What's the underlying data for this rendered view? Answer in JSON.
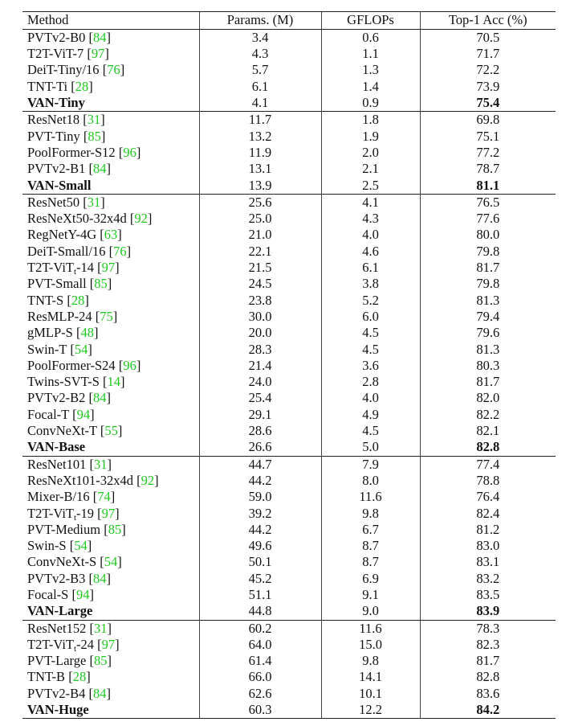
{
  "bracket": [
    "[",
    "]"
  ],
  "table": {
    "header": [
      "Method",
      "Params. (M)",
      "GFLOPs",
      "Top-1 Acc (%)"
    ],
    "groups": [
      {
        "rows": [
          {
            "method": "PVTv2-B0",
            "ref": "84",
            "params": "3.4",
            "gflops": "0.6",
            "acc": "70.5"
          },
          {
            "method": "T2T-ViT-7",
            "ref": "97",
            "params": "4.3",
            "gflops": "1.1",
            "acc": "71.7"
          },
          {
            "method": "DeiT-Tiny/16",
            "ref": "76",
            "params": "5.7",
            "gflops": "1.3",
            "acc": "72.2"
          },
          {
            "method": "TNT-Ti",
            "ref": "28",
            "params": "6.1",
            "gflops": "1.4",
            "acc": "73.9"
          },
          {
            "method": "VAN-Tiny",
            "bold": true,
            "params": "4.1",
            "gflops": "0.9",
            "acc": "75.4"
          }
        ]
      },
      {
        "rows": [
          {
            "method": "ResNet18",
            "ref": "31",
            "params": "11.7",
            "gflops": "1.8",
            "acc": "69.8"
          },
          {
            "method": "PVT-Tiny",
            "ref": "85",
            "params": "13.2",
            "gflops": "1.9",
            "acc": "75.1"
          },
          {
            "method": "PoolFormer-S12",
            "ref": "96",
            "params": "11.9",
            "gflops": "2.0",
            "acc": "77.2"
          },
          {
            "method": "PVTv2-B1",
            "ref": "84",
            "params": "13.1",
            "gflops": "2.1",
            "acc": "78.7"
          },
          {
            "method": "VAN-Small",
            "bold": true,
            "params": "13.9",
            "gflops": "2.5",
            "acc": "81.1"
          }
        ]
      },
      {
        "rows": [
          {
            "method": "ResNet50",
            "ref": "31",
            "params": "25.6",
            "gflops": "4.1",
            "acc": "76.5"
          },
          {
            "method": "ResNeXt50-32x4d",
            "ref": "92",
            "params": "25.0",
            "gflops": "4.3",
            "acc": "77.6"
          },
          {
            "method": "RegNetY-4G",
            "ref": "63",
            "params": "21.0",
            "gflops": "4.0",
            "acc": "80.0"
          },
          {
            "method": "DeiT-Small/16",
            "ref": "76",
            "params": "22.1",
            "gflops": "4.6",
            "acc": "79.8"
          },
          {
            "method": "T2T-ViT",
            "sub": "t",
            "tail": "-14",
            "ref": "97",
            "params": "21.5",
            "gflops": "6.1",
            "acc": "81.7"
          },
          {
            "method": "PVT-Small",
            "ref": "85",
            "params": "24.5",
            "gflops": "3.8",
            "acc": "79.8"
          },
          {
            "method": "TNT-S",
            "ref": "28",
            "params": "23.8",
            "gflops": "5.2",
            "acc": "81.3"
          },
          {
            "method": "ResMLP-24",
            "ref": "75",
            "params": "30.0",
            "gflops": "6.0",
            "acc": "79.4"
          },
          {
            "method": "gMLP-S",
            "ref": "48",
            "params": "20.0",
            "gflops": "4.5",
            "acc": "79.6"
          },
          {
            "method": "Swin-T",
            "ref": "54",
            "params": "28.3",
            "gflops": "4.5",
            "acc": "81.3"
          },
          {
            "method": "PoolFormer-S24",
            "ref": "96",
            "params": "21.4",
            "gflops": "3.6",
            "acc": "80.3"
          },
          {
            "method": "Twins-SVT-S",
            "ref": "14",
            "params": "24.0",
            "gflops": "2.8",
            "acc": "81.7"
          },
          {
            "method": "PVTv2-B2",
            "ref": "84",
            "params": "25.4",
            "gflops": "4.0",
            "acc": "82.0"
          },
          {
            "method": "Focal-T",
            "ref": "94",
            "params": "29.1",
            "gflops": "4.9",
            "acc": "82.2"
          },
          {
            "method": "ConvNeXt-T",
            "ref": "55",
            "params": "28.6",
            "gflops": "4.5",
            "acc": "82.1"
          },
          {
            "method": "VAN-Base",
            "bold": true,
            "params": "26.6",
            "gflops": "5.0",
            "acc": "82.8"
          }
        ]
      },
      {
        "rows": [
          {
            "method": "ResNet101",
            "ref": "31",
            "params": "44.7",
            "gflops": "7.9",
            "acc": "77.4"
          },
          {
            "method": "ResNeXt101-32x4d",
            "ref": "92",
            "params": "44.2",
            "gflops": "8.0",
            "acc": "78.8"
          },
          {
            "method": "Mixer-B/16",
            "ref": "74",
            "params": "59.0",
            "gflops": "11.6",
            "acc": "76.4"
          },
          {
            "method": "T2T-ViT",
            "sub": "t",
            "tail": "-19",
            "ref": "97",
            "params": "39.2",
            "gflops": "9.8",
            "acc": "82.4"
          },
          {
            "method": "PVT-Medium",
            "ref": "85",
            "params": "44.2",
            "gflops": "6.7",
            "acc": "81.2"
          },
          {
            "method": "Swin-S",
            "ref": "54",
            "params": "49.6",
            "gflops": "8.7",
            "acc": "83.0"
          },
          {
            "method": "ConvNeXt-S",
            "ref": "54",
            "params": "50.1",
            "gflops": "8.7",
            "acc": "83.1"
          },
          {
            "method": "PVTv2-B3",
            "ref": "84",
            "params": "45.2",
            "gflops": "6.9",
            "acc": "83.2"
          },
          {
            "method": "Focal-S",
            "ref": "94",
            "params": "51.1",
            "gflops": "9.1",
            "acc": "83.5"
          },
          {
            "method": "VAN-Large",
            "bold": true,
            "params": "44.8",
            "gflops": "9.0",
            "acc": "83.9"
          }
        ]
      },
      {
        "rows": [
          {
            "method": "ResNet152",
            "ref": "31",
            "params": "60.2",
            "gflops": "11.6",
            "acc": "78.3"
          },
          {
            "method": "T2T-ViT",
            "sub": "t",
            "tail": "-24",
            "ref": "97",
            "params": "64.0",
            "gflops": "15.0",
            "acc": "82.3"
          },
          {
            "method": "PVT-Large",
            "ref": "85",
            "params": "61.4",
            "gflops": "9.8",
            "acc": "81.7"
          },
          {
            "method": "TNT-B",
            "ref": "28",
            "params": "66.0",
            "gflops": "14.1",
            "acc": "82.8"
          },
          {
            "method": "PVTv2-B4",
            "ref": "84",
            "params": "62.6",
            "gflops": "10.1",
            "acc": "83.6"
          },
          {
            "method": "VAN-Huge",
            "bold": true,
            "params": "60.3",
            "gflops": "12.2",
            "acc": "84.2"
          }
        ]
      }
    ]
  }
}
